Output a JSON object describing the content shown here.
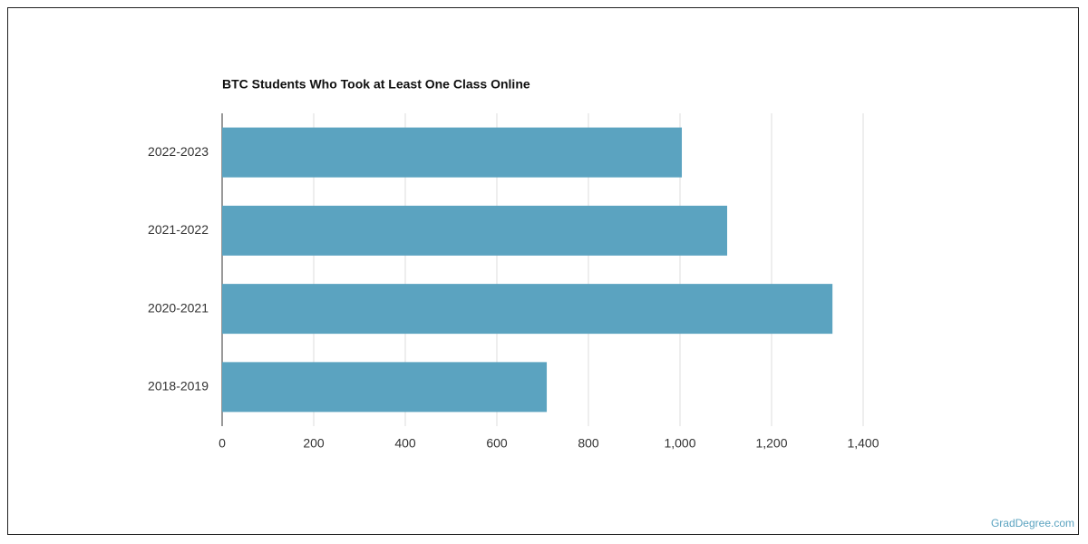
{
  "chart_data": {
    "type": "hbar",
    "title": "BTC Students Who Took at Least One Class Online",
    "categories": [
      "2022-2023",
      "2021-2022",
      "2020-2021",
      "2018-2019"
    ],
    "values": [
      1004,
      1103,
      1333,
      709
    ],
    "color": "#5ba3c0",
    "xlim": [
      0,
      1400
    ],
    "xticks": [
      0,
      200,
      400,
      600,
      800,
      {
        "value": 1000,
        "label": "1,000"
      },
      {
        "value": 1200,
        "label": "1,200"
      },
      {
        "value": 1400,
        "label": "1,400"
      }
    ],
    "grid": true,
    "source": "GradDegree.com"
  }
}
